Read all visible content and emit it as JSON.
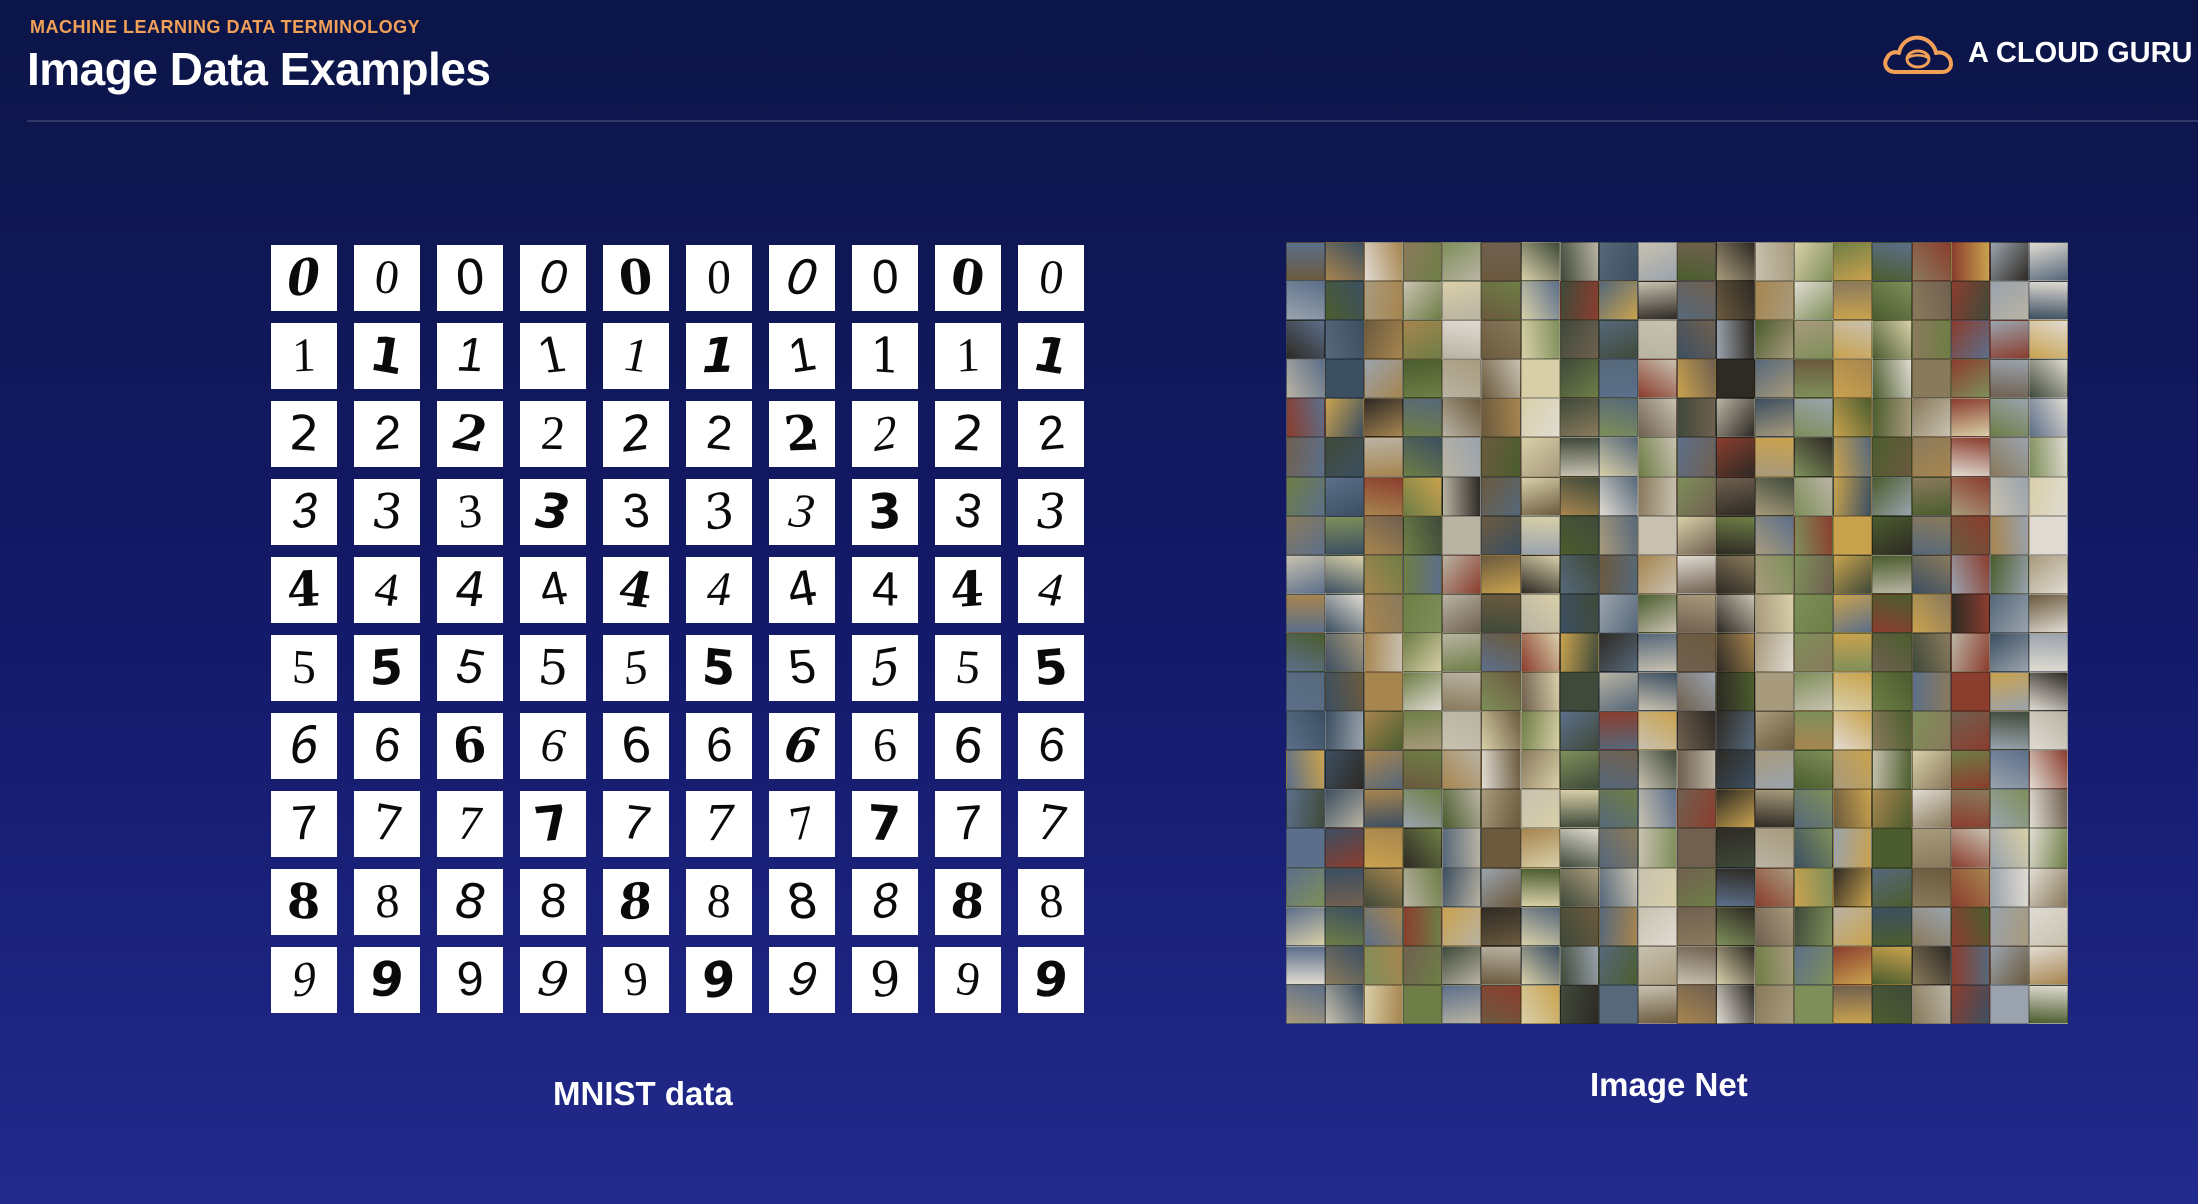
{
  "header": {
    "eyebrow": "MACHINE LEARNING DATA TERMINOLOGY",
    "title": "Image Data Examples"
  },
  "brand": {
    "logo_text": "A CLOUD GURU",
    "accent_color": "#f2a057"
  },
  "mnist": {
    "caption": "MNIST data",
    "digits": [
      "0",
      "1",
      "2",
      "3",
      "4",
      "5",
      "6",
      "7",
      "8",
      "9"
    ],
    "samples_per_digit": 10
  },
  "imagenet": {
    "caption": "Image Net"
  }
}
